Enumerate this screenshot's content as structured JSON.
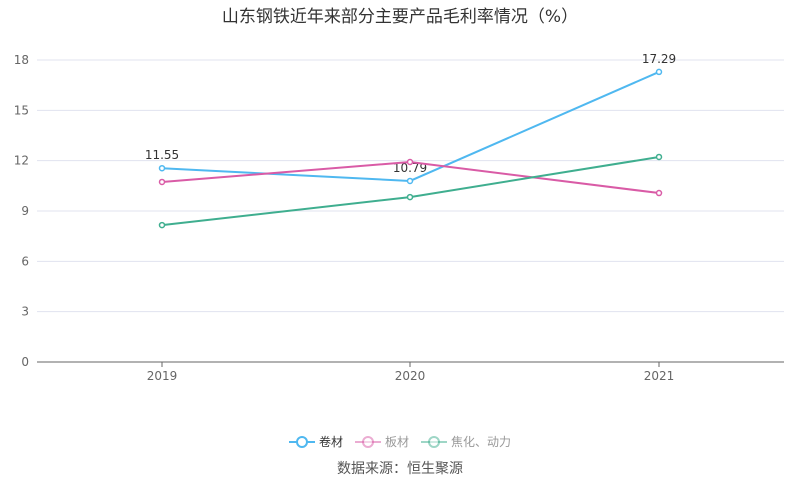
{
  "chart_data": {
    "type": "line",
    "title": "山东钢铁近年来部分主要产品毛利率情况（%）",
    "categories": [
      "2019",
      "2020",
      "2021"
    ],
    "ylim": [
      0,
      18
    ],
    "yticks": [
      0,
      3,
      6,
      9,
      12,
      15,
      18
    ],
    "grid": true,
    "legend_position": "bottom",
    "series": [
      {
        "name": "卷材",
        "color": "#4fb8f0",
        "values": [
          11.55,
          10.79,
          17.29
        ],
        "labels": [
          "11.55",
          "10.79",
          "17.29"
        ],
        "active": true
      },
      {
        "name": "板材",
        "color": "#d95ba6",
        "values": [
          10.73,
          11.92,
          10.07
        ],
        "active": false
      },
      {
        "name": "焦化、动力",
        "color": "#3fae8f",
        "values": [
          8.16,
          9.83,
          12.22
        ],
        "active": false
      }
    ]
  },
  "source": "数据来源：恒生聚源"
}
